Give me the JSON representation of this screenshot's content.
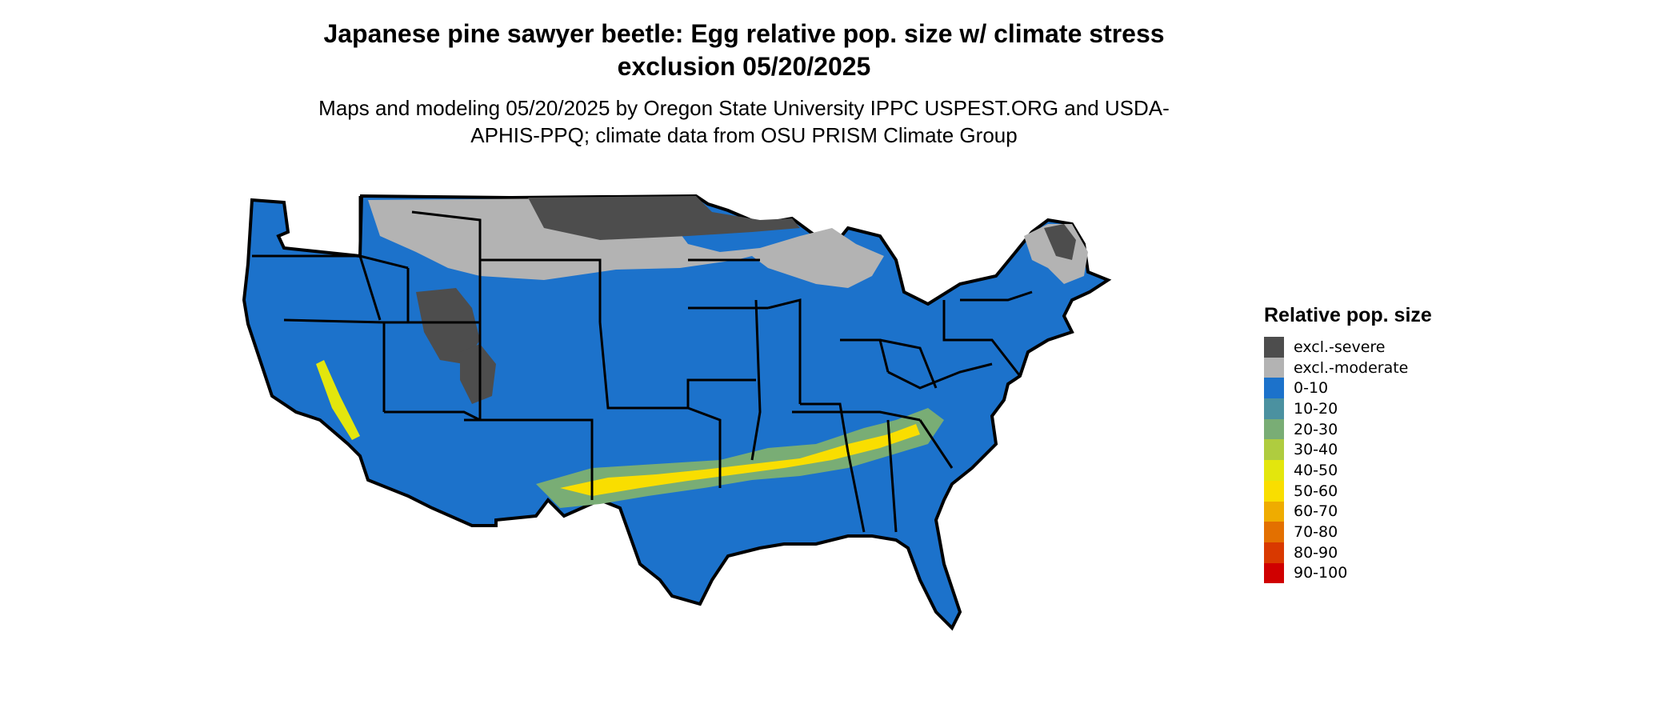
{
  "title": "Japanese pine sawyer beetle: Egg relative pop. size w/ climate stress exclusion 05/20/2025",
  "subtitle": "Maps and modeling 05/20/2025 by Oregon State University IPPC USPEST.ORG and USDA-APHIS-PPQ; climate data from OSU PRISM Climate Group",
  "legend": {
    "title": "Relative pop. size",
    "items": [
      {
        "label": "excl.-severe",
        "color": "#4d4d4d"
      },
      {
        "label": "excl.-moderate",
        "color": "#b3b3b3"
      },
      {
        "label": "0-10",
        "color": "#1c72cb"
      },
      {
        "label": "10-20",
        "color": "#4b91a0"
      },
      {
        "label": "20-30",
        "color": "#79ad75"
      },
      {
        "label": "30-40",
        "color": "#afcc3f"
      },
      {
        "label": "40-50",
        "color": "#e3e60d"
      },
      {
        "label": "50-60",
        "color": "#f9de00"
      },
      {
        "label": "60-70",
        "color": "#efac00"
      },
      {
        "label": "70-80",
        "color": "#e37000"
      },
      {
        "label": "80-90",
        "color": "#d93900"
      },
      {
        "label": "90-100",
        "color": "#d00000"
      }
    ]
  },
  "map": {
    "region": "Contiguous United States",
    "base_color": "#1c72cb",
    "border_color": "#000000"
  }
}
